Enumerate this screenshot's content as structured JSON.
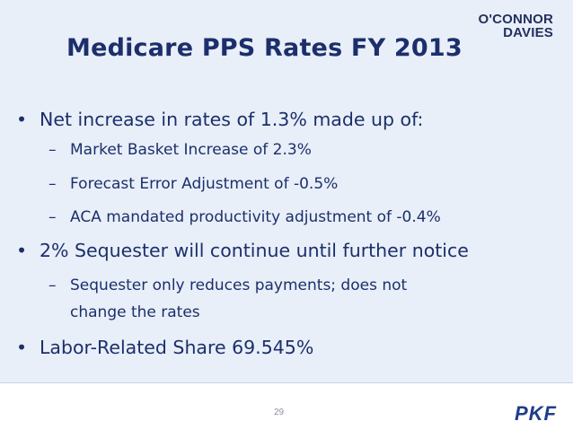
{
  "slide": {
    "logo_line1": "O'CONNOR",
    "logo_line2": "DAVIES",
    "title": "Medicare PPS Rates FY 2013",
    "bullets": [
      {
        "text": "Net increase in rates of 1.3% made up of:",
        "sub": [
          "Market Basket Increase of 2.3%",
          "Forecast Error Adjustment of -0.5%",
          "ACA mandated productivity adjustment of -0.4%"
        ]
      },
      {
        "text": "2% Sequester will continue until further notice",
        "sub": [
          "Sequester only reduces payments; does not",
          "change the rates"
        ]
      },
      {
        "text": "Labor-Related Share 69.545%",
        "sub": []
      }
    ],
    "bullet_glyph": "•",
    "dash_glyph": "–",
    "page_number": "29",
    "footer_logo": "PKF"
  },
  "colors": {
    "background": "#e8eff8",
    "text": "#1c2f6b",
    "logo": "#23305f",
    "pkf": "#1f3d8a"
  }
}
